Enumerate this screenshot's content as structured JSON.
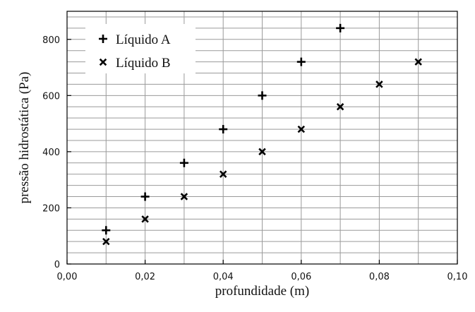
{
  "chart_data": {
    "type": "scatter",
    "xlabel": "profundidade (m)",
    "ylabel": "pressão hidrostática (Pa)",
    "xlim": [
      0,
      0.1
    ],
    "ylim": [
      0,
      900
    ],
    "x_ticks": [
      0,
      0.02,
      0.04,
      0.06,
      0.08,
      0.1
    ],
    "x_tick_labels": [
      "0,00",
      "0,02",
      "0,04",
      "0,06",
      "0,08",
      "0,10"
    ],
    "x_minor_step": 0.01,
    "y_ticks": [
      0,
      200,
      400,
      600,
      800
    ],
    "y_tick_labels": [
      "0",
      "200",
      "400",
      "600",
      "800"
    ],
    "y_minor_step": 40,
    "grid": true,
    "legend_position": "top-left",
    "series": [
      {
        "name": "Líquido A",
        "marker": "plus",
        "color": "#000000",
        "x": [
          0.01,
          0.02,
          0.03,
          0.04,
          0.05,
          0.06,
          0.07
        ],
        "y": [
          120,
          240,
          360,
          480,
          600,
          720,
          840
        ]
      },
      {
        "name": "Líquido B",
        "marker": "cross",
        "color": "#000000",
        "x": [
          0.01,
          0.02,
          0.03,
          0.04,
          0.05,
          0.06,
          0.07,
          0.08,
          0.09
        ],
        "y": [
          80,
          160,
          240,
          320,
          400,
          480,
          560,
          640,
          720
        ]
      }
    ]
  }
}
